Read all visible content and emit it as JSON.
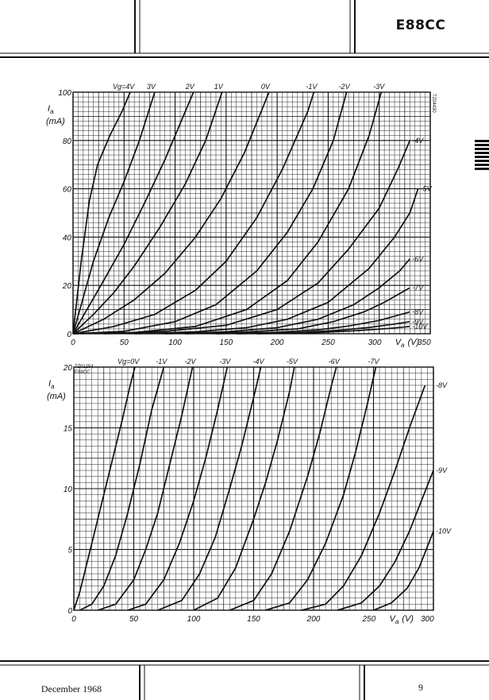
{
  "header": {
    "title": "E88CC"
  },
  "footer": {
    "date": "December 1968",
    "page": "9"
  },
  "chart_data": [
    {
      "type": "line",
      "code": "7Z04430",
      "xlabel_var": "V",
      "xlabel_sub": "a",
      "xlabel_unit": "(V)",
      "ylabel_var": "I",
      "ylabel_sub": "a",
      "ylabel_unit": "(mA)",
      "xlim": [
        0,
        350
      ],
      "ylim": [
        0,
        100
      ],
      "x_ticks": [
        "0",
        "50",
        "100",
        "150",
        "200",
        "250",
        "300",
        "350"
      ],
      "y_ticks": [
        "0",
        "20",
        "40",
        "60",
        "80",
        "100"
      ],
      "grid": true,
      "series": [
        {
          "name": "Vg=4V",
          "points": [
            [
              0,
              0
            ],
            [
              8,
              30
            ],
            [
              16,
              55
            ],
            [
              24,
              70
            ],
            [
              36,
              82
            ],
            [
              48,
              92
            ],
            [
              56,
              100
            ]
          ]
        },
        {
          "name": "3V",
          "points": [
            [
              0,
              0
            ],
            [
              10,
              15
            ],
            [
              20,
              30
            ],
            [
              35,
              48
            ],
            [
              50,
              63
            ],
            [
              65,
              80
            ],
            [
              80,
              100
            ]
          ]
        },
        {
          "name": "2V",
          "points": [
            [
              0,
              0
            ],
            [
              15,
              11
            ],
            [
              30,
              22
            ],
            [
              50,
              37
            ],
            [
              70,
              54
            ],
            [
              90,
              72
            ],
            [
              105,
              87
            ],
            [
              118,
              100
            ]
          ]
        },
        {
          "name": "1V",
          "points": [
            [
              0,
              0
            ],
            [
              20,
              8
            ],
            [
              40,
              17
            ],
            [
              60,
              28
            ],
            [
              85,
              44
            ],
            [
              110,
              62
            ],
            [
              130,
              80
            ],
            [
              146,
              100
            ]
          ]
        },
        {
          "name": "0V",
          "points": [
            [
              0,
              0
            ],
            [
              30,
              6
            ],
            [
              60,
              14
            ],
            [
              90,
              25
            ],
            [
              120,
              40
            ],
            [
              145,
              56
            ],
            [
              168,
              75
            ],
            [
              192,
              100
            ]
          ]
        },
        {
          "name": "-1V",
          "points": [
            [
              0,
              0
            ],
            [
              40,
              3
            ],
            [
              80,
              8
            ],
            [
              120,
              18
            ],
            [
              150,
              30
            ],
            [
              180,
              48
            ],
            [
              205,
              68
            ],
            [
              230,
              92
            ],
            [
              236,
              100
            ]
          ]
        },
        {
          "name": "-2V",
          "points": [
            [
              0,
              0
            ],
            [
              50,
              1
            ],
            [
              100,
              5
            ],
            [
              140,
              12
            ],
            [
              180,
              26
            ],
            [
              210,
              42
            ],
            [
              235,
              60
            ],
            [
              255,
              80
            ],
            [
              268,
              100
            ]
          ]
        },
        {
          "name": "-3V",
          "points": [
            [
              0,
              0
            ],
            [
              60,
              0.5
            ],
            [
              120,
              3
            ],
            [
              170,
              10
            ],
            [
              210,
              22
            ],
            [
              240,
              38
            ],
            [
              270,
              60
            ],
            [
              290,
              82
            ],
            [
              302,
              100
            ]
          ]
        },
        {
          "name": "-4V",
          "points": [
            [
              30,
              0
            ],
            [
              90,
              1
            ],
            [
              150,
              3.5
            ],
            [
              200,
              10
            ],
            [
              240,
              21
            ],
            [
              270,
              35
            ],
            [
              300,
              52
            ],
            [
              318,
              68
            ],
            [
              330,
              80
            ]
          ]
        },
        {
          "name": "-5V",
          "points": [
            [
              60,
              0
            ],
            [
              120,
              0.8
            ],
            [
              170,
              2.5
            ],
            [
              210,
              6
            ],
            [
              250,
              13
            ],
            [
              290,
              27
            ],
            [
              315,
              40
            ],
            [
              330,
              50
            ],
            [
              338,
              60
            ]
          ]
        },
        {
          "name": "-6V",
          "points": [
            [
              90,
              0
            ],
            [
              150,
              0.8
            ],
            [
              200,
              2.5
            ],
            [
              240,
              6
            ],
            [
              275,
              12
            ],
            [
              300,
              19
            ],
            [
              320,
              26
            ],
            [
              330,
              31
            ]
          ]
        },
        {
          "name": "-7V",
          "points": [
            [
              110,
              0
            ],
            [
              170,
              0.7
            ],
            [
              220,
              2
            ],
            [
              255,
              5
            ],
            [
              285,
              9
            ],
            [
              305,
              13
            ],
            [
              330,
              19
            ]
          ]
        },
        {
          "name": "-8V",
          "points": [
            [
              140,
              0
            ],
            [
              200,
              0.6
            ],
            [
              240,
              1.6
            ],
            [
              270,
              3.2
            ],
            [
              300,
              5.5
            ],
            [
              330,
              9
            ]
          ]
        },
        {
          "name": "-9V",
          "points": [
            [
              160,
              0
            ],
            [
              220,
              0.5
            ],
            [
              260,
              1.4
            ],
            [
              290,
              2.6
            ],
            [
              315,
              4
            ],
            [
              330,
              5
            ]
          ]
        },
        {
          "name": "-10V",
          "points": [
            [
              180,
              0
            ],
            [
              240,
              0.5
            ],
            [
              280,
              1.3
            ],
            [
              310,
              2.2
            ],
            [
              330,
              3
            ]
          ]
        }
      ]
    },
    {
      "type": "line",
      "code": "7Z01254",
      "tube": "E88CC",
      "xlabel_var": "V",
      "xlabel_sub": "a",
      "xlabel_unit": "(V)",
      "ylabel_var": "I",
      "ylabel_sub": "a",
      "ylabel_unit": "(mA)",
      "xlim": [
        0,
        300
      ],
      "ylim": [
        0,
        20
      ],
      "x_ticks": [
        "0",
        "50",
        "100",
        "150",
        "200",
        "250",
        "300"
      ],
      "y_ticks": [
        "0",
        "5",
        "10",
        "15",
        "20"
      ],
      "grid": true,
      "series": [
        {
          "name": "Vg=0V",
          "points": [
            [
              0,
              0
            ],
            [
              5,
              1.5
            ],
            [
              10,
              3.5
            ],
            [
              20,
              7.5
            ],
            [
              30,
              11.5
            ],
            [
              40,
              15.5
            ],
            [
              47,
              18.5
            ],
            [
              51,
              20
            ]
          ]
        },
        {
          "name": "-1V",
          "points": [
            [
              5,
              0
            ],
            [
              15,
              0.5
            ],
            [
              25,
              2
            ],
            [
              35,
              4.5
            ],
            [
              45,
              8
            ],
            [
              55,
              12
            ],
            [
              65,
              16.5
            ],
            [
              75,
              20
            ]
          ]
        },
        {
          "name": "-2V",
          "points": [
            [
              20,
              0
            ],
            [
              35,
              0.5
            ],
            [
              50,
              2.5
            ],
            [
              60,
              5
            ],
            [
              70,
              8
            ],
            [
              80,
              12
            ],
            [
              90,
              16
            ],
            [
              99,
              20
            ]
          ]
        },
        {
          "name": "-3V",
          "points": [
            [
              45,
              0
            ],
            [
              60,
              0.5
            ],
            [
              75,
              2.5
            ],
            [
              88,
              5.5
            ],
            [
              100,
              9
            ],
            [
              110,
              12.5
            ],
            [
              120,
              16.5
            ],
            [
              128,
              20
            ]
          ]
        },
        {
          "name": "-4V",
          "points": [
            [
              70,
              0
            ],
            [
              90,
              0.8
            ],
            [
              105,
              3
            ],
            [
              118,
              6
            ],
            [
              130,
              10
            ],
            [
              140,
              13.5
            ],
            [
              150,
              17.5
            ],
            [
              156,
              20
            ]
          ]
        },
        {
          "name": "-5V",
          "points": [
            [
              100,
              0
            ],
            [
              120,
              1
            ],
            [
              135,
              3.5
            ],
            [
              150,
              7.5
            ],
            [
              160,
              10.5
            ],
            [
              170,
              14
            ],
            [
              180,
              18
            ],
            [
              184,
              20
            ]
          ]
        },
        {
          "name": "-6V",
          "points": [
            [
              130,
              0
            ],
            [
              150,
              0.8
            ],
            [
              165,
              3
            ],
            [
              180,
              6.5
            ],
            [
              195,
              11
            ],
            [
              205,
              14.5
            ],
            [
              215,
              18.5
            ],
            [
              219,
              20
            ]
          ]
        },
        {
          "name": "-7V",
          "points": [
            [
              160,
              0
            ],
            [
              180,
              0.6
            ],
            [
              195,
              2.5
            ],
            [
              210,
              5.5
            ],
            [
              225,
              9.5
            ],
            [
              235,
              13
            ],
            [
              245,
              17
            ],
            [
              252,
              20
            ]
          ]
        },
        {
          "name": "-8V",
          "points": [
            [
              190,
              0
            ],
            [
              210,
              0.5
            ],
            [
              225,
              2
            ],
            [
              240,
              4.5
            ],
            [
              255,
              8
            ],
            [
              268,
              11.5
            ],
            [
              280,
              15
            ],
            [
              293,
              18.5
            ]
          ]
        },
        {
          "name": "-9V",
          "points": [
            [
              220,
              0
            ],
            [
              240,
              0.6
            ],
            [
              255,
              2
            ],
            [
              268,
              4
            ],
            [
              280,
              6.5
            ],
            [
              292,
              9.5
            ],
            [
              300,
              11.5
            ]
          ]
        },
        {
          "name": "-10V",
          "points": [
            [
              250,
              0
            ],
            [
              265,
              0.6
            ],
            [
              278,
              1.8
            ],
            [
              288,
              3.5
            ],
            [
              296,
              5.5
            ],
            [
              300,
              6.5
            ]
          ]
        }
      ]
    }
  ]
}
